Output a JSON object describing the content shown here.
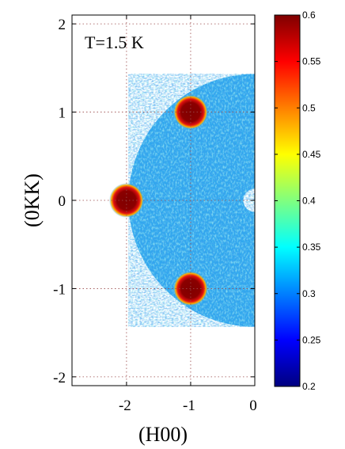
{
  "chart_data": {
    "type": "heatmap",
    "title": "",
    "annotation": "T=1.5 K",
    "xlabel": "(H00)",
    "ylabel": "(0KK)",
    "xlim": [
      -2.85,
      0.0
    ],
    "ylim": [
      -2.1,
      2.1
    ],
    "xticks": [
      -2,
      -1,
      0
    ],
    "xtick_labels": [
      "-2",
      "-1",
      "0"
    ],
    "yticks": [
      2,
      1,
      0,
      -1,
      -2
    ],
    "ytick_labels": [
      "2",
      "1",
      "0",
      "-1",
      "-2"
    ],
    "grid": true,
    "colormap": "jet",
    "colorbar": {
      "range": [
        0.2,
        0.6
      ],
      "ticks": [
        0.6,
        0.55,
        0.5,
        0.45,
        0.4,
        0.35,
        0.3,
        0.25,
        0.2
      ],
      "tick_labels": [
        "0.6",
        "0.55",
        "0.5",
        "0.45",
        "0.4",
        "0.35",
        "0.3",
        "0.25",
        "0.2"
      ]
    },
    "coverage": {
      "outer_radius": 1.97,
      "inner_radius": 0.18,
      "half_plane": "H<0"
    },
    "background_intensity": 0.33,
    "peaks": [
      {
        "h": -1,
        "k": 1,
        "intensity": 0.6
      },
      {
        "h": -2,
        "k": 0,
        "intensity": 0.6
      },
      {
        "h": -1,
        "k": -1,
        "intensity": 0.6
      }
    ]
  },
  "colors": {
    "low": "#00007f",
    "mid": "#7fff7f",
    "high": "#7f0000",
    "background": "#2fa8ee",
    "peak": "#8b0000"
  }
}
